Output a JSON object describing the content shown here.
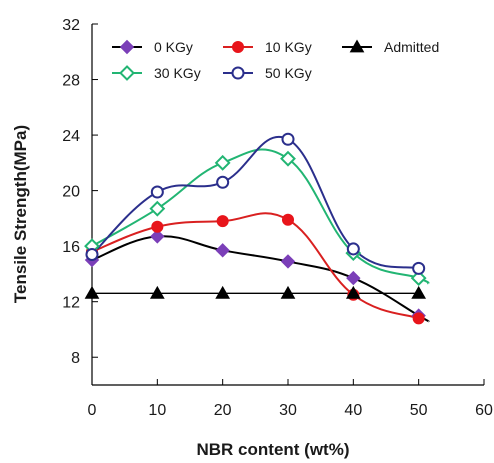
{
  "chart_data": {
    "type": "line",
    "xlabel": "NBR content (wt%)",
    "ylabel": "Tensile Strength(MPa)",
    "xlim": [
      0,
      60
    ],
    "ylim": [
      6,
      32
    ],
    "xticks": [
      0,
      10,
      20,
      30,
      40,
      50,
      60
    ],
    "yticks": [
      8,
      12,
      16,
      20,
      24,
      28,
      32
    ],
    "grid": false,
    "legend_position": "top",
    "series": [
      {
        "name": "0 KGy",
        "color": "#7b3fb8",
        "marker": "diamond-filled",
        "line": "#000000",
        "x": [
          0,
          10,
          20,
          30,
          40,
          50
        ],
        "y": [
          15.0,
          16.7,
          15.7,
          14.9,
          13.7,
          11.0
        ]
      },
      {
        "name": "10 KGy",
        "color": "#e8151b",
        "marker": "circle-filled",
        "line": "#d92020",
        "x": [
          0,
          10,
          20,
          30,
          40,
          50
        ],
        "y": [
          15.6,
          17.4,
          17.8,
          17.9,
          12.5,
          10.8
        ]
      },
      {
        "name": "Admitted",
        "color": "#000000",
        "marker": "triangle-filled",
        "line": "#000000",
        "x": [
          0,
          10,
          20,
          30,
          40,
          50
        ],
        "y": [
          12.6,
          12.6,
          12.6,
          12.6,
          12.6,
          12.6
        ]
      },
      {
        "name": "30 KGy",
        "color": "#22b573",
        "marker": "diamond-open",
        "line": "#22b573",
        "x": [
          0,
          10,
          20,
          30,
          40,
          50
        ],
        "y": [
          16.0,
          18.7,
          22.0,
          22.3,
          15.5,
          13.7
        ]
      },
      {
        "name": "50 KGy",
        "color": "#2b2f8c",
        "marker": "circle-open",
        "line": "#2b2f8c",
        "x": [
          0,
          10,
          20,
          30,
          40,
          50
        ],
        "y": [
          15.4,
          19.9,
          20.6,
          23.7,
          15.8,
          14.4
        ]
      }
    ]
  }
}
